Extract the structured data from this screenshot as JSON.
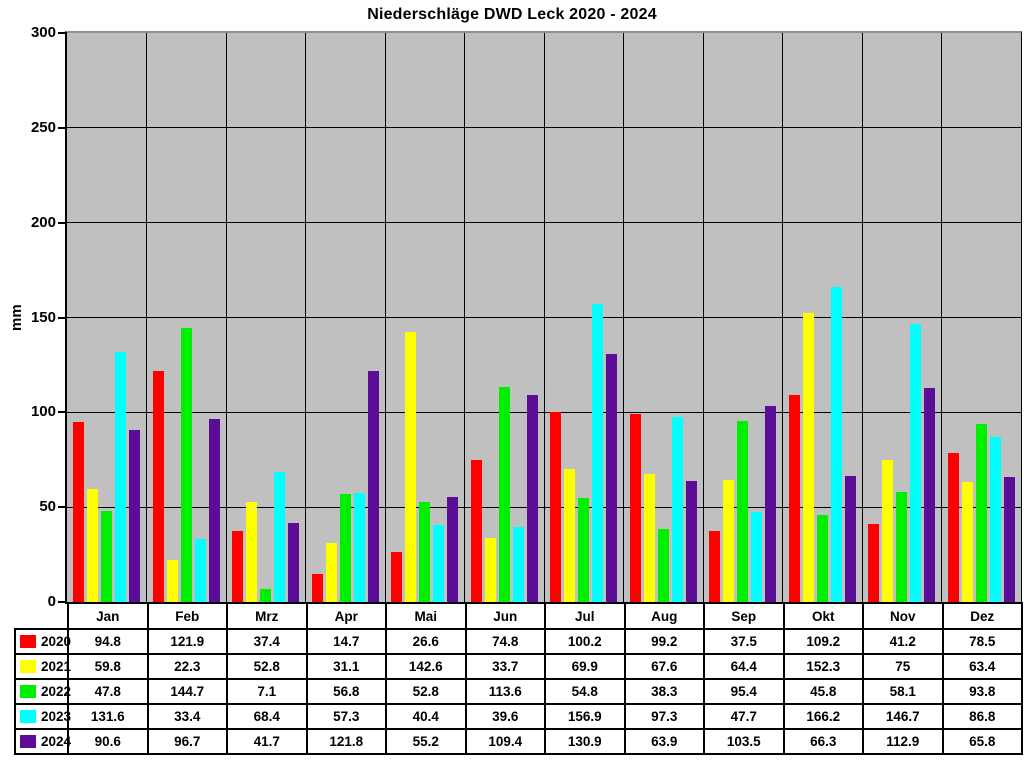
{
  "chart_data": {
    "type": "bar",
    "title": "Niederschläge DWD Leck 2020 - 2024",
    "ylabel": "mm",
    "xlabel": "",
    "ylim": [
      0,
      300
    ],
    "yticks": [
      300,
      250,
      200,
      150,
      100,
      50,
      0
    ],
    "grid": true,
    "legend_position": "table-left-column",
    "plot_background": "#c0c0c0",
    "grid_color": "#000000",
    "categories": [
      "Jan",
      "Feb",
      "Mrz",
      "Apr",
      "Mai",
      "Jun",
      "Jul",
      "Aug",
      "Sep",
      "Okt",
      "Nov",
      "Dez"
    ],
    "series": [
      {
        "name": "2020",
        "color": "#ff0000",
        "values": [
          94.8,
          121.9,
          37.4,
          14.7,
          26.6,
          74.8,
          100.2,
          99.2,
          37.5,
          109.2,
          41.2,
          78.5
        ]
      },
      {
        "name": "2021",
        "color": "#ffff00",
        "values": [
          59.8,
          22.3,
          52.8,
          31.1,
          142.6,
          33.7,
          69.9,
          67.6,
          64.4,
          152.3,
          75,
          63.4
        ]
      },
      {
        "name": "2022",
        "color": "#00ee00",
        "values": [
          47.8,
          144.7,
          7.1,
          56.8,
          52.8,
          113.6,
          54.8,
          38.3,
          95.4,
          45.8,
          58.1,
          93.8
        ]
      },
      {
        "name": "2023",
        "color": "#00ffff",
        "values": [
          131.6,
          33.4,
          68.4,
          57.3,
          40.4,
          39.6,
          156.9,
          97.3,
          47.7,
          166.2,
          146.7,
          86.8
        ]
      },
      {
        "name": "2024",
        "color": "#5c0d96",
        "values": [
          90.6,
          96.7,
          41.7,
          121.8,
          55.2,
          109.4,
          130.9,
          63.9,
          103.5,
          66.3,
          112.9,
          65.8
        ]
      }
    ]
  }
}
